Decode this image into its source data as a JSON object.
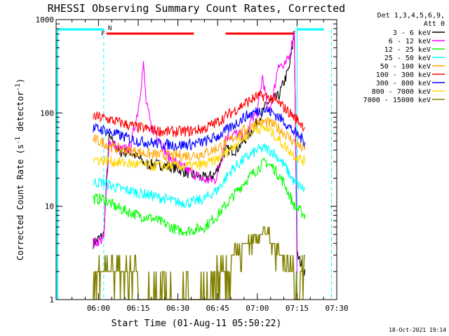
{
  "chart_data": {
    "type": "line",
    "title": "RHESSI Observing Summary Count Rates, Corrected",
    "xlabel": "Start Time (01-Aug-11 05:50:22)",
    "ylabel_main": "Corrected Count Rate (s",
    "ylabel_sup1": "-1",
    "ylabel_mid": " detector",
    "ylabel_sup2": "-1",
    "ylabel_end": ")",
    "yscale": "log",
    "ylim": [
      1,
      1000
    ],
    "xlim_minutes": [
      -6,
      100
    ],
    "x_ticks": [
      {
        "t": 10,
        "label": "06:00"
      },
      {
        "t": 25,
        "label": "06:15"
      },
      {
        "t": 40,
        "label": "06:30"
      },
      {
        "t": 55,
        "label": "06:45"
      },
      {
        "t": 70,
        "label": "07:00"
      },
      {
        "t": 85,
        "label": "07:15"
      },
      {
        "t": 100,
        "label": "07:30"
      }
    ],
    "y_ticks": [
      {
        "v": 1,
        "label": "1"
      },
      {
        "v": 10,
        "label": "10"
      },
      {
        "v": 100,
        "label": "100"
      },
      {
        "v": 1000,
        "label": "1000"
      }
    ],
    "legend_header": [
      "Det 1,3,4,5,6,9,",
      "Att 0"
    ],
    "legend_position": "right",
    "flags": [
      {
        "label": "F",
        "color": "#ff0000"
      },
      {
        "label": "N",
        "color": "#00ffff"
      }
    ],
    "timestamp": "18-Oct-2021 19:14",
    "series": [
      {
        "name": "3 - 6 keV",
        "color": "#000000",
        "points": [
          [
            8,
            4
          ],
          [
            12,
            5
          ],
          [
            14,
            55
          ],
          [
            18,
            38
          ],
          [
            22,
            38
          ],
          [
            25,
            33
          ],
          [
            28,
            28
          ],
          [
            32,
            28
          ],
          [
            36,
            27
          ],
          [
            40,
            25
          ],
          [
            45,
            22
          ],
          [
            50,
            20
          ],
          [
            54,
            22
          ],
          [
            58,
            40
          ],
          [
            62,
            40
          ],
          [
            66,
            55
          ],
          [
            70,
            80
          ],
          [
            74,
            130
          ],
          [
            78,
            150
          ],
          [
            82,
            300
          ],
          [
            84,
            700
          ],
          [
            85,
            3
          ],
          [
            88,
            2
          ]
        ]
      },
      {
        "name": "6 - 12 keV",
        "color": "#ff00ff",
        "points": [
          [
            8,
            4
          ],
          [
            12,
            4.5
          ],
          [
            14,
            50
          ],
          [
            18,
            40
          ],
          [
            22,
            42
          ],
          [
            25,
            110
          ],
          [
            27,
            330
          ],
          [
            28,
            130
          ],
          [
            30,
            70
          ],
          [
            32,
            60
          ],
          [
            36,
            35
          ],
          [
            40,
            28
          ],
          [
            45,
            23
          ],
          [
            50,
            19
          ],
          [
            54,
            19
          ],
          [
            56,
            28
          ],
          [
            58,
            55
          ],
          [
            62,
            60
          ],
          [
            66,
            55
          ],
          [
            68,
            90
          ],
          [
            70,
            100
          ],
          [
            72,
            250
          ],
          [
            74,
            100
          ],
          [
            76,
            150
          ],
          [
            78,
            350
          ],
          [
            80,
            300
          ],
          [
            82,
            400
          ],
          [
            84,
            750
          ],
          [
            85,
            2
          ]
        ]
      },
      {
        "name": "12 - 25 keV",
        "color": "#00ff00",
        "points": [
          [
            8,
            12
          ],
          [
            12,
            12
          ],
          [
            16,
            10
          ],
          [
            20,
            9
          ],
          [
            25,
            8
          ],
          [
            30,
            7.5
          ],
          [
            35,
            6.5
          ],
          [
            40,
            5.5
          ],
          [
            45,
            5.5
          ],
          [
            50,
            6
          ],
          [
            55,
            8
          ],
          [
            60,
            12
          ],
          [
            65,
            18
          ],
          [
            70,
            25
          ],
          [
            73,
            30
          ],
          [
            76,
            26
          ],
          [
            80,
            18
          ],
          [
            84,
            10
          ],
          [
            88,
            8
          ]
        ]
      },
      {
        "name": "25 - 50 keV",
        "color": "#00ffff",
        "points": [
          [
            8,
            18
          ],
          [
            12,
            18
          ],
          [
            16,
            16
          ],
          [
            20,
            15
          ],
          [
            25,
            14
          ],
          [
            30,
            13
          ],
          [
            35,
            12
          ],
          [
            40,
            11
          ],
          [
            45,
            11
          ],
          [
            50,
            12
          ],
          [
            55,
            15
          ],
          [
            60,
            24
          ],
          [
            65,
            32
          ],
          [
            70,
            40
          ],
          [
            73,
            42
          ],
          [
            76,
            38
          ],
          [
            80,
            28
          ],
          [
            84,
            18
          ],
          [
            88,
            15
          ]
        ]
      },
      {
        "name": "50 - 100 keV",
        "color": "#ffa500",
        "points": [
          [
            8,
            52
          ],
          [
            12,
            48
          ],
          [
            16,
            42
          ],
          [
            20,
            40
          ],
          [
            25,
            38
          ],
          [
            30,
            36
          ],
          [
            35,
            35
          ],
          [
            40,
            35
          ],
          [
            45,
            35
          ],
          [
            50,
            37
          ],
          [
            55,
            42
          ],
          [
            60,
            52
          ],
          [
            65,
            65
          ],
          [
            70,
            78
          ],
          [
            73,
            80
          ],
          [
            76,
            75
          ],
          [
            80,
            62
          ],
          [
            84,
            48
          ],
          [
            88,
            40
          ]
        ]
      },
      {
        "name": "100 - 300 keV",
        "color": "#ff0000",
        "points": [
          [
            8,
            92
          ],
          [
            12,
            88
          ],
          [
            16,
            82
          ],
          [
            20,
            76
          ],
          [
            25,
            70
          ],
          [
            30,
            66
          ],
          [
            35,
            63
          ],
          [
            40,
            63
          ],
          [
            45,
            64
          ],
          [
            50,
            68
          ],
          [
            55,
            80
          ],
          [
            60,
            100
          ],
          [
            65,
            125
          ],
          [
            70,
            150
          ],
          [
            73,
            152
          ],
          [
            76,
            140
          ],
          [
            80,
            115
          ],
          [
            84,
            90
          ],
          [
            88,
            70
          ]
        ]
      },
      {
        "name": "300 - 800 keV",
        "color": "#0000ff",
        "points": [
          [
            8,
            68
          ],
          [
            12,
            66
          ],
          [
            16,
            60
          ],
          [
            20,
            55
          ],
          [
            25,
            50
          ],
          [
            30,
            48
          ],
          [
            35,
            46
          ],
          [
            40,
            45
          ],
          [
            45,
            46
          ],
          [
            50,
            49
          ],
          [
            55,
            56
          ],
          [
            60,
            70
          ],
          [
            65,
            90
          ],
          [
            70,
            105
          ],
          [
            73,
            108
          ],
          [
            76,
            100
          ],
          [
            80,
            82
          ],
          [
            84,
            62
          ],
          [
            88,
            50
          ]
        ]
      },
      {
        "name": "800 - 7000 keV",
        "color": "#ffd700",
        "points": [
          [
            8,
            32
          ],
          [
            12,
            31
          ],
          [
            16,
            30
          ],
          [
            20,
            29
          ],
          [
            25,
            28
          ],
          [
            30,
            27
          ],
          [
            35,
            27
          ],
          [
            40,
            27
          ],
          [
            45,
            27
          ],
          [
            50,
            28
          ],
          [
            55,
            32
          ],
          [
            60,
            42
          ],
          [
            65,
            55
          ],
          [
            70,
            68
          ],
          [
            73,
            68
          ],
          [
            76,
            60
          ],
          [
            80,
            45
          ],
          [
            84,
            35
          ],
          [
            88,
            30
          ]
        ]
      },
      {
        "name": "7000 - 15000 keV",
        "color": "#808000",
        "points": [
          [
            8,
            2
          ],
          [
            10,
            2.5
          ],
          [
            14,
            2
          ],
          [
            20,
            2
          ],
          [
            25,
            1.5
          ],
          [
            30,
            1.5
          ],
          [
            35,
            1
          ],
          [
            40,
            1
          ],
          [
            45,
            1
          ],
          [
            50,
            1
          ],
          [
            54,
            1.5
          ],
          [
            58,
            2
          ],
          [
            62,
            3
          ],
          [
            66,
            4
          ],
          [
            70,
            5
          ],
          [
            74,
            5
          ],
          [
            78,
            3
          ],
          [
            82,
            2.5
          ],
          [
            85,
            1
          ],
          [
            88,
            3
          ]
        ]
      }
    ]
  }
}
